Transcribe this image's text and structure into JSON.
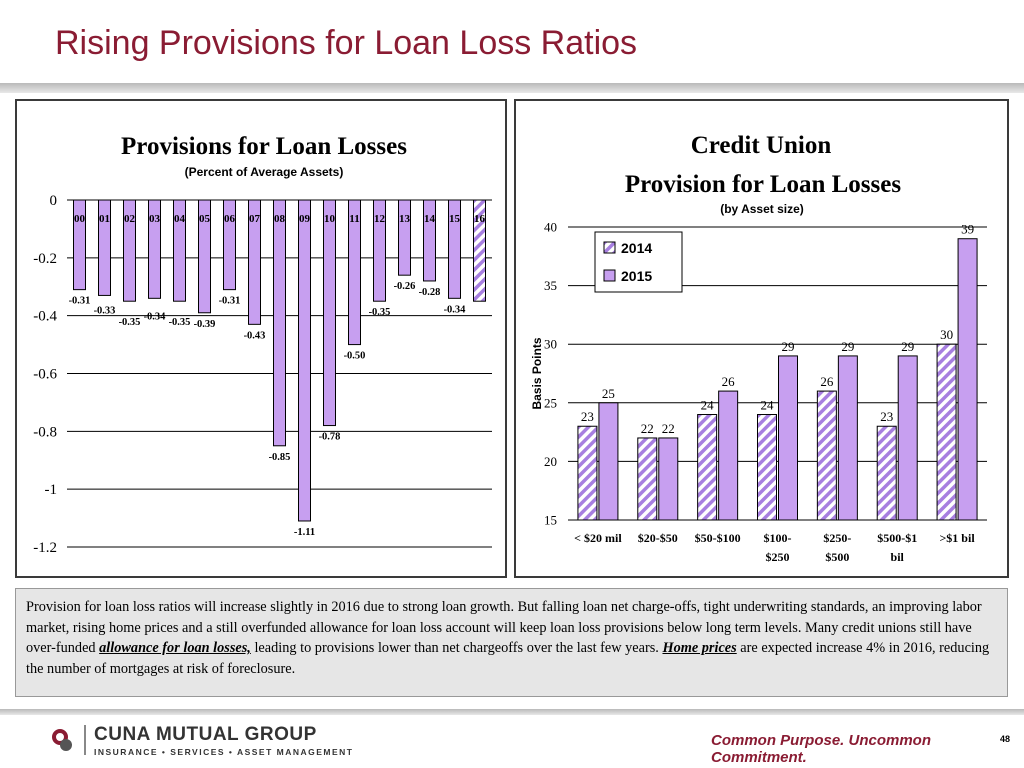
{
  "slide": {
    "title": "Rising Provisions for Loan Loss Ratios",
    "page_number": "48",
    "tagline": "Common Purpose. Uncommon Commitment.",
    "logo_name": "CUNA MUTUAL GROUP",
    "logo_tagline": "INSURANCE • SERVICES • ASSET MANAGEMENT",
    "body_parts": [
      {
        "text": "Provision for loan loss ratios will increase slightly in 2016 due to strong loan growth.  But falling loan net charge-offs, tight underwriting standards, an improving labor market, rising home prices and a still overfunded allowance for loan loss account will keep loan loss provisions below long term levels.  Many credit unions still have over-funded ",
        "emphasis": false
      },
      {
        "text": "allowance for loan losses,",
        "emphasis": true
      },
      {
        "text": " leading to provisions lower than net chargeoffs over the last few years. ",
        "emphasis": false
      },
      {
        "text": "Home prices",
        "emphasis": true
      },
      {
        "text": " are expected increase 4% in 2016, reducing the number of mortgages at risk of foreclosure.",
        "emphasis": false
      }
    ]
  },
  "colors": {
    "title": "#8a1c33",
    "bar_fill": "#c79ff0",
    "bar_stroke": "#000000",
    "hatch": "#a77fe0"
  },
  "chart_data": [
    {
      "type": "bar",
      "title": "Provisions for Loan Losses",
      "subtitle": "(Percent of Average Assets)",
      "categories": [
        "00",
        "01",
        "02",
        "03",
        "04",
        "05",
        "06",
        "07",
        "08",
        "09",
        "10",
        "11",
        "12",
        "13",
        "14",
        "15",
        "16"
      ],
      "values": [
        -0.31,
        -0.33,
        -0.35,
        -0.34,
        -0.35,
        -0.39,
        -0.31,
        -0.43,
        -0.85,
        -1.11,
        -0.78,
        -0.5,
        -0.35,
        -0.26,
        -0.28,
        -0.34,
        -0.35
      ],
      "value_labels": [
        "-0.31",
        "-0.33",
        "-0.35",
        "-0.34",
        "-0.35",
        "-0.39",
        "-0.31",
        "-0.43",
        "-0.85",
        "-1.11",
        "-0.78",
        "-0.50",
        "-0.35",
        "-0.26",
        "-0.28",
        "-0.34",
        "-0.35"
      ],
      "labeled": [
        true,
        true,
        true,
        true,
        true,
        true,
        true,
        true,
        true,
        true,
        true,
        true,
        true,
        true,
        true,
        true,
        false
      ],
      "forecast_index": 16,
      "ylim": [
        -1.2,
        0
      ],
      "yticks": [
        0,
        -0.2,
        -0.4,
        -0.6,
        -0.8,
        -1,
        -1.2
      ],
      "ytick_labels": [
        "0",
        "-0.2",
        "-0.4",
        "-0.6",
        "-0.8",
        "-1",
        "-1.2"
      ],
      "grid": true
    },
    {
      "type": "bar",
      "title": "Credit Union",
      "title_line2": "Provision for Loan Losses",
      "subtitle": "(by Asset size)",
      "ylabel": "Basis Points",
      "categories": [
        [
          "< $20 mil"
        ],
        [
          "$20-$50"
        ],
        [
          "$50-$100"
        ],
        [
          "$100-",
          "$250"
        ],
        [
          "$250-",
          "$500"
        ],
        [
          "$500-$1",
          "bil"
        ],
        [
          ">$1 bil"
        ]
      ],
      "series": [
        {
          "name": "2014",
          "values": [
            23,
            22,
            24,
            24,
            26,
            23,
            30
          ],
          "pattern": "hatch"
        },
        {
          "name": "2015",
          "values": [
            25,
            22,
            26,
            29,
            29,
            29,
            39
          ],
          "pattern": "solid"
        }
      ],
      "ylim": [
        15,
        40
      ],
      "yticks": [
        15,
        20,
        25,
        30,
        35,
        40
      ],
      "ytick_labels": [
        "15",
        "20",
        "25",
        "30",
        "35",
        "40"
      ],
      "legend": "top-left",
      "grid": true
    }
  ]
}
